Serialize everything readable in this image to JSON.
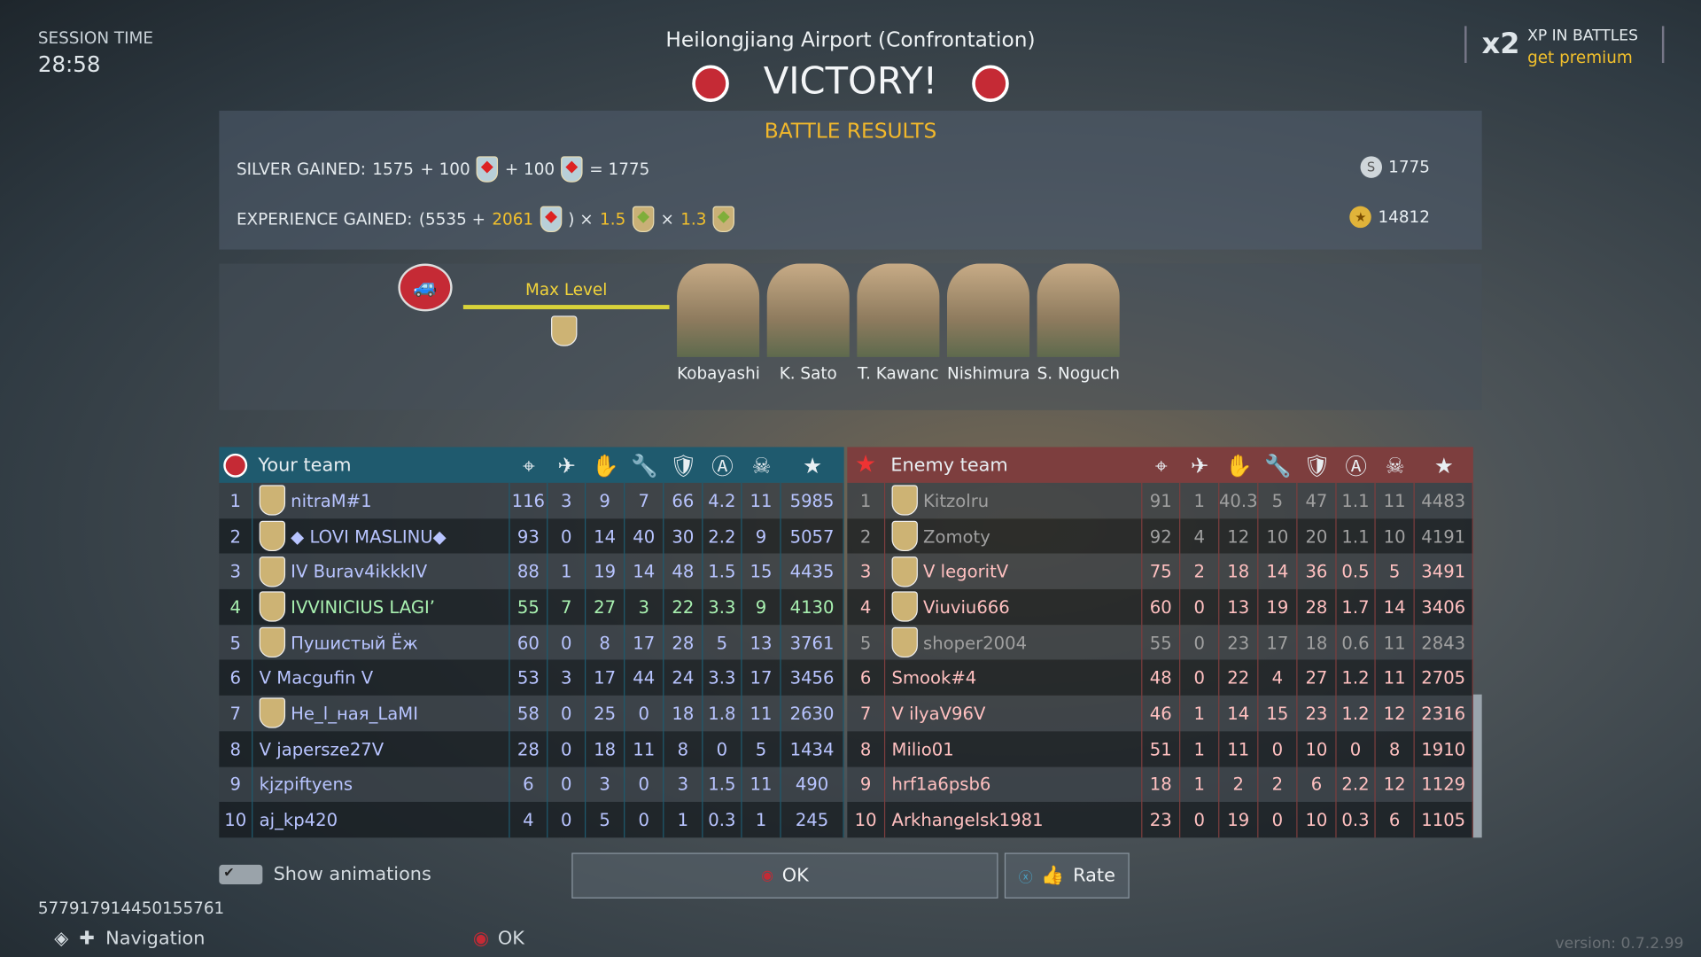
{
  "session": {
    "label": "SESSION TIME",
    "value": "28:58"
  },
  "map_title": "Heilongjiang Airport (Confrontation)",
  "result": "VICTORY!",
  "xp_promo": {
    "multiplier": "x2",
    "text": "XP IN BATTLES",
    "link": "get premium"
  },
  "battle_results": {
    "title": "BATTLE RESULTS",
    "silver": {
      "label": "SILVER GAINED:",
      "base": "1575",
      "bonus1": "+ 100",
      "bonus2": "+ 100",
      "total_expr": "= 1775",
      "total": "1775"
    },
    "experience": {
      "label": "EXPERIENCE GAINED:",
      "open": "(5535 +",
      "bonus": "2061",
      "close": ") ×",
      "mult1": "1.5",
      "times": "×",
      "mult2": "1.3",
      "total": "14812"
    }
  },
  "crew": {
    "max_level": "Max Level",
    "members": [
      "Kobayashi",
      "K. Sato",
      "T. Kawanc",
      "Nishimura",
      "S. Noguch"
    ]
  },
  "colors": {
    "your_team": "#1f5a6e",
    "enemy_team": "#7d3e3e",
    "ally_name": "#b8c4ff",
    "ally_highlight": "#a8f0b0",
    "enemy_name": "#ffc0c0",
    "enemy_dead": "#a0a0a0"
  },
  "stat_icons": [
    "crosshair-icon",
    "plane-tank-icon",
    "hand-icon",
    "wrench-icon",
    "shield-a-icon",
    "a-circle-icon",
    "skull-icon",
    "star-icon"
  ],
  "your_team": {
    "title": "Your team",
    "rows": [
      {
        "n": "1",
        "name": "nitraM#1",
        "s": [
          "116",
          "3",
          "9",
          "7",
          "66",
          "4.2",
          "11",
          "5985"
        ]
      },
      {
        "n": "2",
        "name": "◆ LOVI MASLINU◆",
        "s": [
          "93",
          "0",
          "14",
          "40",
          "30",
          "2.2",
          "9",
          "5057"
        ]
      },
      {
        "n": "3",
        "name": "IV Burav4ikkkIV",
        "s": [
          "88",
          "1",
          "19",
          "14",
          "48",
          "1.5",
          "15",
          "4435"
        ]
      },
      {
        "n": "4",
        "name": "IVVINICIUS LAGI’",
        "s": [
          "55",
          "7",
          "27",
          "3",
          "22",
          "3.3",
          "9",
          "4130"
        ],
        "hl": true
      },
      {
        "n": "5",
        "name": "Пушистый Ёж",
        "s": [
          "60",
          "0",
          "8",
          "17",
          "28",
          "5",
          "13",
          "3761"
        ]
      },
      {
        "n": "6",
        "name": "V Macgufin V",
        "s": [
          "53",
          "3",
          "17",
          "44",
          "24",
          "3.3",
          "17",
          "3456"
        ]
      },
      {
        "n": "7",
        "name": "He_l_ная_LaMI",
        "s": [
          "58",
          "0",
          "25",
          "0",
          "18",
          "1.8",
          "11",
          "2630"
        ]
      },
      {
        "n": "8",
        "name": "V japersze27V",
        "s": [
          "28",
          "0",
          "18",
          "11",
          "8",
          "0",
          "5",
          "1434"
        ]
      },
      {
        "n": "9",
        "name": "kjzpiftyens",
        "s": [
          "6",
          "0",
          "3",
          "0",
          "3",
          "1.5",
          "11",
          "490"
        ]
      },
      {
        "n": "10",
        "name": "aj_kp420",
        "s": [
          "4",
          "0",
          "5",
          "0",
          "1",
          "0.3",
          "1",
          "245"
        ]
      }
    ]
  },
  "enemy_team": {
    "title": "Enemy team",
    "rows": [
      {
        "n": "1",
        "name": "Kitzolru",
        "s": [
          "91",
          "1",
          "40.3",
          "5",
          "47",
          "1.1",
          "11",
          "4483"
        ],
        "dead": true
      },
      {
        "n": "2",
        "name": "Zomoty",
        "s": [
          "92",
          "4",
          "12",
          "10",
          "20",
          "1.1",
          "10",
          "4191"
        ],
        "dead": true
      },
      {
        "n": "3",
        "name": "V legoritV",
        "s": [
          "75",
          "2",
          "18",
          "14",
          "36",
          "0.5",
          "5",
          "3491"
        ]
      },
      {
        "n": "4",
        "name": "Viuviu666",
        "s": [
          "60",
          "0",
          "13",
          "19",
          "28",
          "1.7",
          "14",
          "3406"
        ]
      },
      {
        "n": "5",
        "name": "shoper2004",
        "s": [
          "55",
          "0",
          "23",
          "17",
          "18",
          "0.6",
          "11",
          "2843"
        ],
        "dead": true
      },
      {
        "n": "6",
        "name": "Smook#4",
        "s": [
          "48",
          "0",
          "22",
          "4",
          "27",
          "1.2",
          "11",
          "2705"
        ]
      },
      {
        "n": "7",
        "name": "V ilyaV96V",
        "s": [
          "46",
          "1",
          "14",
          "15",
          "23",
          "1.2",
          "12",
          "2316"
        ]
      },
      {
        "n": "8",
        "name": "Milio01",
        "s": [
          "51",
          "1",
          "11",
          "0",
          "10",
          "0",
          "8",
          "1910"
        ]
      },
      {
        "n": "9",
        "name": "hrf1a6psb6",
        "s": [
          "18",
          "1",
          "2",
          "2",
          "6",
          "2.2",
          "12",
          "1129"
        ]
      },
      {
        "n": "10",
        "name": "Arkhangelsk1981",
        "s": [
          "23",
          "0",
          "19",
          "0",
          "10",
          "0.3",
          "6",
          "1105"
        ]
      }
    ]
  },
  "footer": {
    "show_animations": "Show animations",
    "ok": "OK",
    "rate": "Rate",
    "session_id": "577917914450155761",
    "navigation": "Navigation",
    "ok_hint": "OK",
    "version": "version: 0.7.2.99"
  }
}
